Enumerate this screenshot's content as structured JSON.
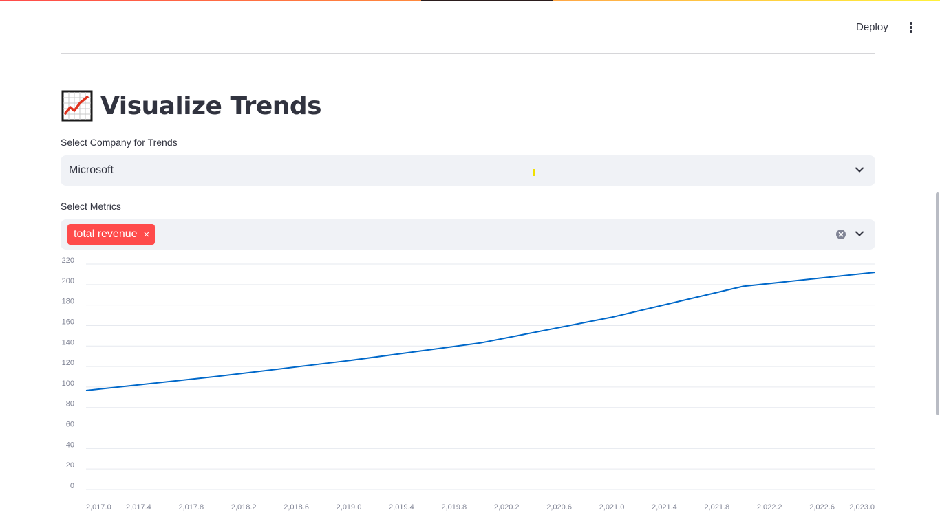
{
  "header": {
    "deploy_label": "Deploy",
    "menu_icon": "kebab-menu-icon"
  },
  "page": {
    "title_icon": "chart-increasing-icon",
    "title": "Visualize Trends"
  },
  "company_select": {
    "label": "Select Company for Trends",
    "value": "Microsoft",
    "icon": "chevron-down-icon"
  },
  "metrics_select": {
    "label": "Select Metrics",
    "tags": [
      {
        "label": "total revenue",
        "remove_symbol": "×"
      }
    ],
    "clear_icon": "clear-all-icon",
    "icon": "chevron-down-icon"
  },
  "colors": {
    "accent": "#ff4b4b",
    "line": "#0068c9",
    "input_bg": "#f0f2f6"
  },
  "chart_data": {
    "type": "line",
    "x": [
      2017,
      2018,
      2019,
      2020,
      2021,
      2022,
      2023
    ],
    "series": [
      {
        "values": [
          96.6,
          110.4,
          125.8,
          143.0,
          168.1,
          198.3,
          211.9
        ]
      }
    ],
    "xlim": [
      2017,
      2023
    ],
    "ylim": [
      0,
      220
    ],
    "x_ticks": [
      "2,017.0",
      "2,017.4",
      "2,017.8",
      "2,018.2",
      "2,018.6",
      "2,019.0",
      "2,019.4",
      "2,019.8",
      "2,020.2",
      "2,020.6",
      "2,021.0",
      "2,021.4",
      "2,021.8",
      "2,022.2",
      "2,022.6",
      "2,023.0"
    ],
    "x_tick_values": [
      2017.0,
      2017.4,
      2017.8,
      2018.2,
      2018.6,
      2019.0,
      2019.4,
      2019.8,
      2020.2,
      2020.6,
      2021.0,
      2021.4,
      2021.8,
      2022.2,
      2022.6,
      2023.0
    ],
    "y_ticks": [
      "0",
      "20",
      "40",
      "60",
      "80",
      "100",
      "120",
      "140",
      "160",
      "180",
      "200",
      "220"
    ],
    "y_tick_values": [
      0,
      20,
      40,
      60,
      80,
      100,
      120,
      140,
      160,
      180,
      200,
      220
    ],
    "grid": true,
    "title": "",
    "xlabel": "",
    "ylabel": ""
  }
}
